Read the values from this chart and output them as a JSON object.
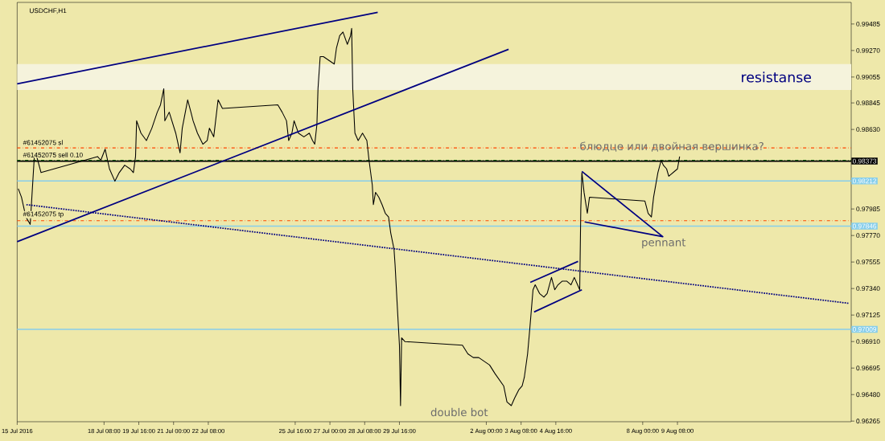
{
  "chart_data": {
    "type": "line",
    "title": "USDCHF,H1",
    "x": [
      "2016-07-15T01:00",
      "2016-07-15T04:00",
      "2016-07-15T08:00",
      "2016-07-15T12:00",
      "2016-07-15T16:00",
      "2016-07-15T18:00",
      "2016-07-15T22:00",
      "2016-07-18T02:00",
      "2016-07-18T05:00",
      "2016-07-18T09:00",
      "2016-07-18T13:00",
      "2016-07-18T18:00",
      "2016-07-18T22:00",
      "2016-07-19T03:00",
      "2016-07-19T08:00",
      "2016-07-19T11:00",
      "2016-07-19T13:00",
      "2016-07-19T14:00",
      "2016-07-19T18:00",
      "2016-07-19T23:00",
      "2016-07-20T04:00",
      "2016-07-20T09:00",
      "2016-07-20T12:00",
      "2016-07-20T15:00",
      "2016-07-20T16:00",
      "2016-07-20T20:00",
      "2016-07-21T02:00",
      "2016-07-21T06:00",
      "2016-07-21T08:00",
      "2016-07-21T13:00",
      "2016-07-21T16:00",
      "2016-07-21T18:00",
      "2016-07-21T22:00",
      "2016-07-22T03:00",
      "2016-07-22T07:00",
      "2016-07-22T09:00",
      "2016-07-22T13:00",
      "2016-07-22T17:00",
      "2016-07-22T21:00",
      "2016-07-25T00:00",
      "2016-07-25T04:00",
      "2016-07-25T08:00",
      "2016-07-25T10:00",
      "2016-07-25T13:00",
      "2016-07-25T15:00",
      "2016-07-25T19:00",
      "2016-07-26T00:00",
      "2016-07-26T05:00",
      "2016-07-26T08:00",
      "2016-07-26T10:00",
      "2016-07-26T12:00",
      "2016-07-26T13:00",
      "2016-07-26T15:00",
      "2016-07-26T18:00",
      "2016-07-26T23:00",
      "2016-07-27T04:00",
      "2016-07-27T06:00",
      "2016-07-27T09:00",
      "2016-07-27T12:00",
      "2016-07-27T16:00",
      "2016-07-27T19:00",
      "2016-07-27T20:00",
      "2016-07-27T21:00",
      "2016-07-27T23:00",
      "2016-07-28T02:00",
      "2016-07-28T06:00",
      "2016-07-28T10:00",
      "2016-07-28T12:00",
      "2016-07-28T15:00",
      "2016-07-28T16:00",
      "2016-07-28T18:00",
      "2016-07-28T21:00",
      "2016-07-29T00:00",
      "2016-07-29T03:00",
      "2016-07-29T06:00",
      "2016-07-29T08:00",
      "2016-07-29T11:00",
      "2016-07-29T12:00",
      "2016-07-29T14:00",
      "2016-07-29T16:00",
      "2016-07-29T17:00",
      "2016-07-29T18:00",
      "2016-07-29T21:00",
      "2016-08-01T02:00",
      "2016-08-01T07:00",
      "2016-08-01T12:00",
      "2016-08-01T17:00",
      "2016-08-01T22:00",
      "2016-08-02T03:00",
      "2016-08-02T08:00",
      "2016-08-02T16:00",
      "2016-08-02T19:00",
      "2016-08-02T23:00",
      "2016-08-03T02:00",
      "2016-08-03T06:00",
      "2016-08-03T09:00",
      "2016-08-03T11:00",
      "2016-08-03T14:00",
      "2016-08-03T16:00",
      "2016-08-03T19:00",
      "2016-08-03T21:00",
      "2016-08-04T01:00",
      "2016-08-04T05:00",
      "2016-08-04T08:00",
      "2016-08-04T12:00",
      "2016-08-04T15:00",
      "2016-08-04T18:00",
      "2016-08-04T22:00",
      "2016-08-05T02:00",
      "2016-08-05T06:00",
      "2016-08-05T09:00",
      "2016-08-05T12:00",
      "2016-08-05T14:00",
      "2016-08-05T15:00",
      "2016-08-05T16:00",
      "2016-08-05T18:00",
      "2016-08-05T21:00",
      "2016-08-05T23:00",
      "2016-08-08T02:00",
      "2016-08-08T05:00",
      "2016-08-08T08:00",
      "2016-08-08T10:00",
      "2016-08-08T12:00",
      "2016-08-08T14:00",
      "2016-08-08T17:00",
      "2016-08-08T19:00",
      "2016-08-08T22:00",
      "2016-08-09T00:00",
      "2016-08-09T04:00",
      "2016-08-09T08:00",
      "2016-08-09T10:00"
    ],
    "series": [
      {
        "color": "#000000",
        "values": [
          0.9815,
          0.9808,
          0.9792,
          0.9786,
          0.9844,
          0.9841,
          0.9828,
          0.9841,
          0.9838,
          0.9847,
          0.9831,
          0.9821,
          0.9828,
          0.9834,
          0.9831,
          0.9828,
          0.9841,
          0.987,
          0.986,
          0.9854,
          0.9864,
          0.9877,
          0.9883,
          0.9896,
          0.987,
          0.9877,
          0.986,
          0.9844,
          0.9864,
          0.9887,
          0.9877,
          0.987,
          0.986,
          0.9851,
          0.9854,
          0.9864,
          0.9857,
          0.9887,
          0.988,
          0.9883,
          0.9877,
          0.987,
          0.9854,
          0.986,
          0.987,
          0.986,
          0.9857,
          0.986,
          0.9854,
          0.9851,
          0.9867,
          0.9896,
          0.9922,
          0.9922,
          0.9919,
          0.9916,
          0.9929,
          0.9939,
          0.9942,
          0.9932,
          0.9939,
          0.9945,
          0.9896,
          0.986,
          0.9854,
          0.986,
          0.9854,
          0.9838,
          0.9818,
          0.9802,
          0.9812,
          0.9808,
          0.9802,
          0.9795,
          0.9792,
          0.9779,
          0.9766,
          0.9753,
          0.972,
          0.9688,
          0.9639,
          0.9694,
          0.9691,
          0.9688,
          0.9681,
          0.9678,
          0.9678,
          0.9675,
          0.9672,
          0.9665,
          0.9655,
          0.9642,
          0.9639,
          0.9645,
          0.9652,
          0.9655,
          0.9662,
          0.9681,
          0.9701,
          0.9733,
          0.9737,
          0.973,
          0.9727,
          0.973,
          0.9743,
          0.9733,
          0.9737,
          0.974,
          0.974,
          0.9737,
          0.9743,
          0.9737,
          0.9733,
          0.9799,
          0.9828,
          0.9812,
          0.9795,
          0.9808,
          0.9805,
          0.9795,
          0.9792,
          0.9808,
          0.9818,
          0.9828,
          0.9838,
          0.9834,
          0.9831,
          0.9825,
          0.9828,
          0.9831,
          0.9841
        ]
      },
      {
        "color": "#000080",
        "x": [
          "2016-07-15T00:00",
          "2016-07-28T20:00"
        ],
        "values": [
          0.99,
          0.9958
        ]
      },
      {
        "color": "#000080",
        "x": [
          "2016-07-15T00:00",
          "2016-08-02T20:30"
        ],
        "values": [
          0.9772,
          0.9928
        ]
      },
      {
        "color": "#000080",
        "x": [
          "2016-07-15T08:30",
          "2016-08-15T22:00"
        ],
        "values": [
          0.9802,
          0.9722
        ],
        "line_style": "dotted"
      },
      {
        "color": "#000080",
        "x": [
          "2016-08-03T16:30",
          "2016-08-05T12:30"
        ],
        "values": [
          0.9739,
          0.9756
        ]
      },
      {
        "color": "#000080",
        "x": [
          "2016-08-03T20:00",
          "2016-08-05T16:00"
        ],
        "values": [
          0.9715,
          0.9733
        ]
      },
      {
        "color": "#000080",
        "x": [
          "2016-08-05T18:30",
          "2016-08-08T18:30",
          "2016-08-05T16:00"
        ],
        "values": [
          0.9788,
          0.9776,
          0.9829
        ]
      }
    ],
    "xlim": [
      "2016-07-15T00:00",
      "2016-08-16T00:00"
    ],
    "ylim": [
      0.9626,
      0.9966
    ],
    "xticks": [
      {
        "value": "2016-07-15T00:00",
        "label": "15 Jul 2016"
      },
      {
        "value": "2016-07-18T08:00",
        "label": "18 Jul 08:00"
      },
      {
        "value": "2016-07-19T16:00",
        "label": "19 Jul 16:00"
      },
      {
        "value": "2016-07-21T00:00",
        "label": "21 Jul 00:00"
      },
      {
        "value": "2016-07-22T08:00",
        "label": "22 Jul 08:00"
      },
      {
        "value": "2016-07-25T16:00",
        "label": "25 Jul 16:00"
      },
      {
        "value": "2016-07-27T00:00",
        "label": "27 Jul 00:00"
      },
      {
        "value": "2016-07-28T08:00",
        "label": "28 Jul 08:00"
      },
      {
        "value": "2016-07-29T16:00",
        "label": "29 Jul 16:00"
      },
      {
        "value": "2016-08-02T00:00",
        "label": "2 Aug 00:00"
      },
      {
        "value": "2016-08-03T08:00",
        "label": "3 Aug 08:00"
      },
      {
        "value": "2016-08-04T16:00",
        "label": "4 Aug 16:00"
      },
      {
        "value": "2016-08-08T00:00",
        "label": "8 Aug 00:00"
      },
      {
        "value": "2016-08-09T08:00",
        "label": "9 Aug 08:00"
      }
    ],
    "yticks": [
      {
        "value": 0.99485,
        "label": "0.99485"
      },
      {
        "value": 0.9927,
        "label": "0.99270"
      },
      {
        "value": 0.99055,
        "label": "0.99055"
      },
      {
        "value": 0.98845,
        "label": "0.98845"
      },
      {
        "value": 0.9863,
        "label": "0.98630"
      },
      {
        "value": 0.97985,
        "label": "0.97985"
      },
      {
        "value": 0.9777,
        "label": "0.97770"
      },
      {
        "value": 0.97555,
        "label": "0.97555"
      },
      {
        "value": 0.9734,
        "label": "0.97340"
      },
      {
        "value": 0.97125,
        "label": "0.97125"
      },
      {
        "value": 0.9691,
        "label": "0.96910"
      },
      {
        "value": 0.96695,
        "label": "0.96695"
      },
      {
        "value": 0.9648,
        "label": "0.96480"
      },
      {
        "value": 0.96265,
        "label": "0.96265"
      }
    ],
    "ref_lines": [
      {
        "axis": "y",
        "value": 0.9848,
        "label": "#61452075 sl",
        "color": "#ff4500",
        "line_style": "dashed"
      },
      {
        "axis": "y",
        "value": 0.9838,
        "label": "#61452075 sell 0.10",
        "color": "#008000",
        "line_style": "dashed"
      },
      {
        "axis": "y",
        "value": 0.9789,
        "label": "#61452075 tp",
        "color": "#ff4500",
        "line_style": "dashed"
      },
      {
        "axis": "y",
        "value": 0.98373,
        "label": "0.98373",
        "color": "#000000",
        "line_style": "solid"
      },
      {
        "axis": "y",
        "value": 0.98212,
        "label": "0.98212",
        "color": "#87ceeb",
        "line_style": "solid"
      },
      {
        "axis": "y",
        "value": 0.97846,
        "label": "0.97846",
        "color": "#87ceeb",
        "line_style": "solid"
      },
      {
        "axis": "y",
        "value": 0.97009,
        "label": "0.97009",
        "color": "#87ceeb",
        "line_style": "solid"
      }
    ],
    "bands": [
      {
        "axis": "y",
        "from": 0.9895,
        "to": 0.9916,
        "label": "resistanse",
        "color": "#f5f3dc"
      }
    ],
    "annotations": [
      "блюдце или двойная вершинка?",
      "pennant",
      "double bot"
    ],
    "grid": false,
    "marker": "none",
    "line_style": "solid"
  }
}
